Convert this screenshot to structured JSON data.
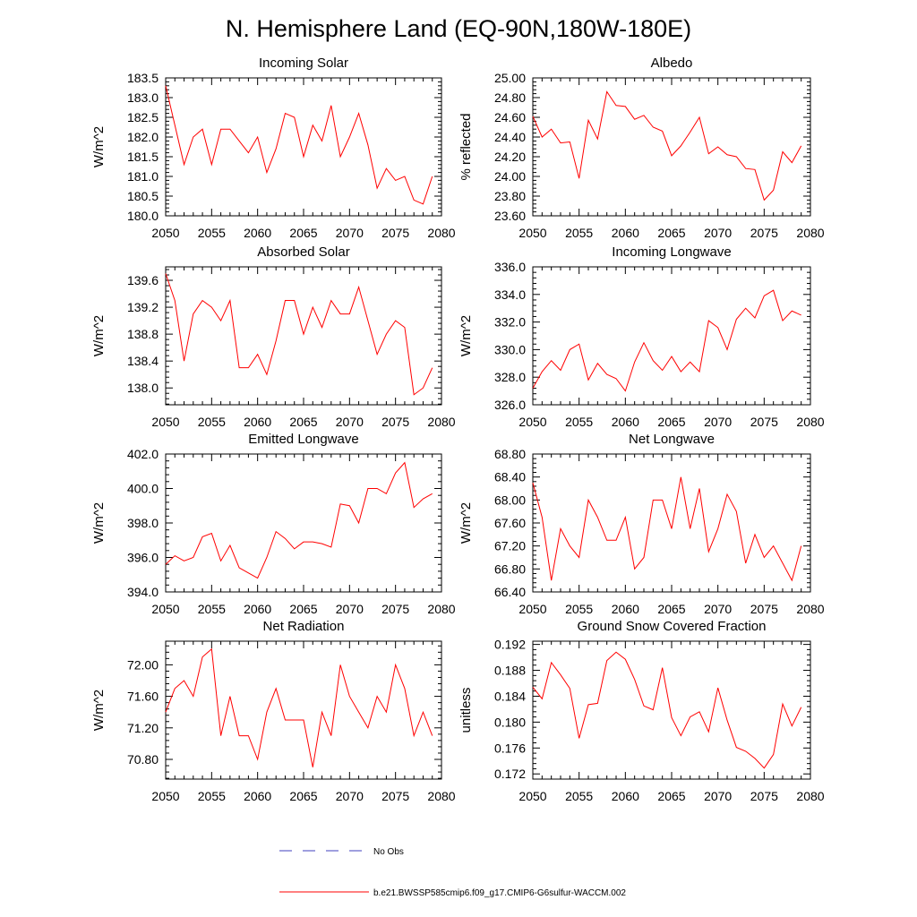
{
  "title": "N. Hemisphere Land (EQ-90N,180W-180E)",
  "colors": {
    "model": "#ff0000",
    "obs": "#3f3fbf",
    "axis": "#000000"
  },
  "legend": {
    "obs_label": "No Obs",
    "model_label": "b.e21.BWSSP585cmip6.f09_g17.CMIP6-G6sulfur-WACCM.002"
  },
  "chart_data": [
    {
      "type": "line",
      "title": "Incoming Solar",
      "ylabel": "W/m^2",
      "xlim": [
        2050,
        2080
      ],
      "ylim": [
        180.0,
        183.5
      ],
      "xticks": [
        2050,
        2055,
        2060,
        2065,
        2070,
        2075,
        2080
      ],
      "xtick_labels": [
        "2050",
        "2055",
        "2060",
        "2065",
        "2070",
        "2075",
        "2080"
      ],
      "yticks": [
        180.0,
        180.5,
        181.0,
        181.5,
        182.0,
        182.5,
        183.0,
        183.5
      ],
      "ytick_labels": [
        "180.0",
        "180.5",
        "181.0",
        "181.5",
        "182.0",
        "182.5",
        "183.0",
        "183.5"
      ],
      "x": [
        2050,
        2051,
        2052,
        2053,
        2054,
        2055,
        2056,
        2057,
        2058,
        2059,
        2060,
        2061,
        2062,
        2063,
        2064,
        2065,
        2066,
        2067,
        2068,
        2069,
        2070,
        2071,
        2072,
        2073,
        2074,
        2075,
        2076,
        2077,
        2078,
        2079
      ],
      "series": [
        {
          "name": "b.e21.BWSSP585cmip6.f09_g17.CMIP6-G6sulfur-WACCM.002",
          "values": [
            183.3,
            182.3,
            181.3,
            182.0,
            182.2,
            181.3,
            182.2,
            182.2,
            181.9,
            181.6,
            182.0,
            181.1,
            181.7,
            182.6,
            182.5,
            181.5,
            182.3,
            181.9,
            182.8,
            181.5,
            182.0,
            182.6,
            181.8,
            180.7,
            181.2,
            180.9,
            181.0,
            180.4,
            180.3,
            181.0
          ]
        }
      ]
    },
    {
      "type": "line",
      "title": "Albedo",
      "ylabel": "% reflected",
      "xlim": [
        2050,
        2080
      ],
      "ylim": [
        23.6,
        25.0
      ],
      "xticks": [
        2050,
        2055,
        2060,
        2065,
        2070,
        2075,
        2080
      ],
      "xtick_labels": [
        "2050",
        "2055",
        "2060",
        "2065",
        "2070",
        "2075",
        "2080"
      ],
      "yticks": [
        23.6,
        23.8,
        24.0,
        24.2,
        24.4,
        24.6,
        24.8,
        25.0
      ],
      "ytick_labels": [
        "23.60",
        "23.80",
        "24.00",
        "24.20",
        "24.40",
        "24.60",
        "24.80",
        "25.00"
      ],
      "x": [
        2050,
        2051,
        2052,
        2053,
        2054,
        2055,
        2056,
        2057,
        2058,
        2059,
        2060,
        2061,
        2062,
        2063,
        2064,
        2065,
        2066,
        2067,
        2068,
        2069,
        2070,
        2071,
        2072,
        2073,
        2074,
        2075,
        2076,
        2077,
        2078,
        2079
      ],
      "series": [
        {
          "name": "b.e21.BWSSP585cmip6.f09_g17.CMIP6-G6sulfur-WACCM.002",
          "values": [
            24.61,
            24.4,
            24.48,
            24.34,
            24.35,
            23.98,
            24.57,
            24.38,
            24.86,
            24.72,
            24.71,
            24.58,
            24.62,
            24.5,
            24.46,
            24.21,
            24.31,
            24.45,
            24.6,
            24.23,
            24.3,
            24.22,
            24.2,
            24.08,
            24.07,
            23.76,
            23.86,
            24.25,
            24.14,
            24.31
          ]
        }
      ]
    },
    {
      "type": "line",
      "title": "Absorbed Solar",
      "ylabel": "W/m^2",
      "xlim": [
        2050,
        2080
      ],
      "ylim": [
        137.75,
        139.8
      ],
      "xticks": [
        2050,
        2055,
        2060,
        2065,
        2070,
        2075,
        2080
      ],
      "xtick_labels": [
        "2050",
        "2055",
        "2060",
        "2065",
        "2070",
        "2075",
        "2080"
      ],
      "yticks": [
        138.0,
        138.4,
        138.8,
        139.2,
        139.6
      ],
      "ytick_labels": [
        "138.0",
        "138.4",
        "138.8",
        "139.2",
        "139.6"
      ],
      "x": [
        2050,
        2051,
        2052,
        2053,
        2054,
        2055,
        2056,
        2057,
        2058,
        2059,
        2060,
        2061,
        2062,
        2063,
        2064,
        2065,
        2066,
        2067,
        2068,
        2069,
        2070,
        2071,
        2072,
        2073,
        2074,
        2075,
        2076,
        2077,
        2078,
        2079
      ],
      "series": [
        {
          "name": "b.e21.BWSSP585cmip6.f09_g17.CMIP6-G6sulfur-WACCM.002",
          "values": [
            139.7,
            139.3,
            138.4,
            139.1,
            139.3,
            139.2,
            139.0,
            139.3,
            138.3,
            138.3,
            138.5,
            138.2,
            138.7,
            139.3,
            139.3,
            138.8,
            139.2,
            138.9,
            139.3,
            139.1,
            139.1,
            139.5,
            139.0,
            138.5,
            138.8,
            139.0,
            138.9,
            137.9,
            138.0,
            138.3
          ]
        }
      ]
    },
    {
      "type": "line",
      "title": "Incoming Longwave",
      "ylabel": "W/m^2",
      "xlim": [
        2050,
        2080
      ],
      "ylim": [
        326.0,
        336.0
      ],
      "xticks": [
        2050,
        2055,
        2060,
        2065,
        2070,
        2075,
        2080
      ],
      "xtick_labels": [
        "2050",
        "2055",
        "2060",
        "2065",
        "2070",
        "2075",
        "2080"
      ],
      "yticks": [
        326.0,
        328.0,
        330.0,
        332.0,
        334.0,
        336.0
      ],
      "ytick_labels": [
        "326.0",
        "328.0",
        "330.0",
        "332.0",
        "334.0",
        "336.0"
      ],
      "x": [
        2050,
        2051,
        2052,
        2053,
        2054,
        2055,
        2056,
        2057,
        2058,
        2059,
        2060,
        2061,
        2062,
        2063,
        2064,
        2065,
        2066,
        2067,
        2068,
        2069,
        2070,
        2071,
        2072,
        2073,
        2074,
        2075,
        2076,
        2077,
        2078,
        2079
      ],
      "series": [
        {
          "name": "b.e21.BWSSP585cmip6.f09_g17.CMIP6-G6sulfur-WACCM.002",
          "values": [
            327.2,
            328.4,
            329.2,
            328.5,
            330.0,
            330.4,
            327.8,
            329.0,
            328.2,
            327.9,
            327.0,
            329.1,
            330.5,
            329.2,
            328.5,
            329.5,
            328.4,
            329.1,
            328.4,
            332.1,
            331.6,
            330.0,
            332.2,
            333.0,
            332.3,
            333.9,
            334.3,
            332.1,
            332.8,
            332.5
          ]
        }
      ]
    },
    {
      "type": "line",
      "title": "Emitted Longwave",
      "ylabel": "W/m^2",
      "xlim": [
        2050,
        2080
      ],
      "ylim": [
        394.0,
        402.0
      ],
      "xticks": [
        2050,
        2055,
        2060,
        2065,
        2070,
        2075,
        2080
      ],
      "xtick_labels": [
        "2050",
        "2055",
        "2060",
        "2065",
        "2070",
        "2075",
        "2080"
      ],
      "yticks": [
        394.0,
        396.0,
        398.0,
        400.0,
        402.0
      ],
      "ytick_labels": [
        "394.0",
        "396.0",
        "398.0",
        "400.0",
        "402.0"
      ],
      "x": [
        2050,
        2051,
        2052,
        2053,
        2054,
        2055,
        2056,
        2057,
        2058,
        2059,
        2060,
        2061,
        2062,
        2063,
        2064,
        2065,
        2066,
        2067,
        2068,
        2069,
        2070,
        2071,
        2072,
        2073,
        2074,
        2075,
        2076,
        2077,
        2078,
        2079
      ],
      "series": [
        {
          "name": "b.e21.BWSSP585cmip6.f09_g17.CMIP6-G6sulfur-WACCM.002",
          "values": [
            395.6,
            396.1,
            395.8,
            396.0,
            397.2,
            397.4,
            395.8,
            396.7,
            395.4,
            395.1,
            394.8,
            396.0,
            397.5,
            397.1,
            396.5,
            396.9,
            396.9,
            396.8,
            396.6,
            399.1,
            399.0,
            398.0,
            400.0,
            400.0,
            399.7,
            400.9,
            401.5,
            398.9,
            399.4,
            399.7
          ]
        }
      ]
    },
    {
      "type": "line",
      "title": "Net Longwave",
      "ylabel": "W/m^2",
      "xlim": [
        2050,
        2080
      ],
      "ylim": [
        66.4,
        68.8
      ],
      "xticks": [
        2050,
        2055,
        2060,
        2065,
        2070,
        2075,
        2080
      ],
      "xtick_labels": [
        "2050",
        "2055",
        "2060",
        "2065",
        "2070",
        "2075",
        "2080"
      ],
      "yticks": [
        66.4,
        66.8,
        67.2,
        67.6,
        68.0,
        68.4,
        68.8
      ],
      "ytick_labels": [
        "66.40",
        "66.80",
        "67.20",
        "67.60",
        "68.00",
        "68.40",
        "68.80"
      ],
      "x": [
        2050,
        2051,
        2052,
        2053,
        2054,
        2055,
        2056,
        2057,
        2058,
        2059,
        2060,
        2061,
        2062,
        2063,
        2064,
        2065,
        2066,
        2067,
        2068,
        2069,
        2070,
        2071,
        2072,
        2073,
        2074,
        2075,
        2076,
        2077,
        2078,
        2079
      ],
      "series": [
        {
          "name": "b.e21.BWSSP585cmip6.f09_g17.CMIP6-G6sulfur-WACCM.002",
          "values": [
            68.3,
            67.7,
            66.6,
            67.5,
            67.2,
            67.0,
            68.0,
            67.7,
            67.3,
            67.3,
            67.7,
            66.8,
            67.0,
            68.0,
            68.0,
            67.5,
            68.4,
            67.5,
            68.2,
            67.1,
            67.5,
            68.1,
            67.8,
            66.9,
            67.4,
            67.0,
            67.2,
            66.9,
            66.6,
            67.2
          ]
        }
      ]
    },
    {
      "type": "line",
      "title": "Net Radiation",
      "ylabel": "W/m^2",
      "xlim": [
        2050,
        2080
      ],
      "ylim": [
        70.55,
        72.3
      ],
      "xticks": [
        2050,
        2055,
        2060,
        2065,
        2070,
        2075,
        2080
      ],
      "xtick_labels": [
        "2050",
        "2055",
        "2060",
        "2065",
        "2070",
        "2075",
        "2080"
      ],
      "yticks": [
        70.8,
        71.2,
        71.6,
        72.0
      ],
      "ytick_labels": [
        "70.80",
        "71.20",
        "71.60",
        "72.00"
      ],
      "x": [
        2050,
        2051,
        2052,
        2053,
        2054,
        2055,
        2056,
        2057,
        2058,
        2059,
        2060,
        2061,
        2062,
        2063,
        2064,
        2065,
        2066,
        2067,
        2068,
        2069,
        2070,
        2071,
        2072,
        2073,
        2074,
        2075,
        2076,
        2077,
        2078,
        2079
      ],
      "series": [
        {
          "name": "b.e21.BWSSP585cmip6.f09_g17.CMIP6-G6sulfur-WACCM.002",
          "values": [
            71.4,
            71.7,
            71.8,
            71.6,
            72.1,
            72.2,
            71.1,
            71.6,
            71.1,
            71.1,
            70.8,
            71.4,
            71.7,
            71.3,
            71.3,
            71.3,
            70.7,
            71.4,
            71.1,
            72.0,
            71.6,
            71.4,
            71.2,
            71.6,
            71.4,
            72.0,
            71.7,
            71.1,
            71.4,
            71.1
          ]
        }
      ]
    },
    {
      "type": "line",
      "title": "Ground Snow Covered Fraction",
      "ylabel": "unitless",
      "xlim": [
        2050,
        2080
      ],
      "ylim": [
        0.1712,
        0.1925
      ],
      "xticks": [
        2050,
        2055,
        2060,
        2065,
        2070,
        2075,
        2080
      ],
      "xtick_labels": [
        "2050",
        "2055",
        "2060",
        "2065",
        "2070",
        "2075",
        "2080"
      ],
      "yticks": [
        0.172,
        0.176,
        0.18,
        0.184,
        0.188,
        0.192
      ],
      "ytick_labels": [
        "0.172",
        "0.176",
        "0.180",
        "0.184",
        "0.188",
        "0.192"
      ],
      "x": [
        2050,
        2051,
        2052,
        2053,
        2054,
        2055,
        2056,
        2057,
        2058,
        2059,
        2060,
        2061,
        2062,
        2063,
        2064,
        2065,
        2066,
        2067,
        2068,
        2069,
        2070,
        2071,
        2072,
        2073,
        2074,
        2075,
        2076,
        2077,
        2078,
        2079
      ],
      "series": [
        {
          "name": "b.e21.BWSSP585cmip6.f09_g17.CMIP6-G6sulfur-WACCM.002",
          "values": [
            0.1854,
            0.1836,
            0.1892,
            0.1873,
            0.1852,
            0.1775,
            0.1827,
            0.1829,
            0.1895,
            0.1908,
            0.1897,
            0.1866,
            0.1825,
            0.1819,
            0.1884,
            0.1807,
            0.1779,
            0.1808,
            0.1816,
            0.1785,
            0.1853,
            0.1803,
            0.1761,
            0.1755,
            0.1744,
            0.1729,
            0.175,
            0.1828,
            0.1794,
            0.1823
          ]
        }
      ]
    }
  ]
}
